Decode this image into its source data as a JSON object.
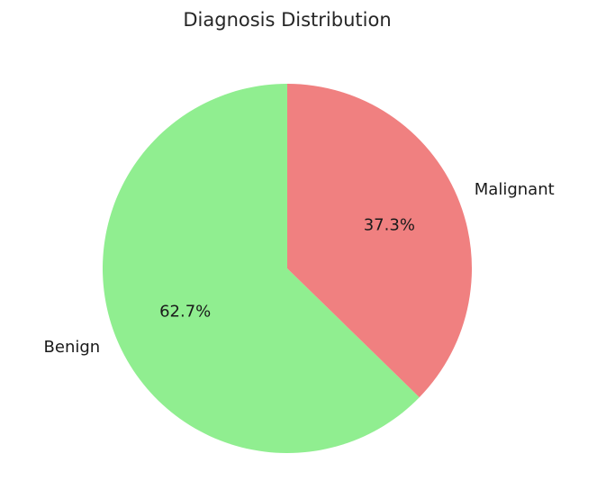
{
  "chart_data": {
    "type": "pie",
    "title": "Diagnosis Distribution",
    "categories": [
      "Benign",
      "Malignant"
    ],
    "values": [
      62.7,
      37.3
    ],
    "value_labels": [
      "62.7%",
      "37.3%"
    ],
    "colors": [
      "#90ee90",
      "#f08080"
    ],
    "start_angle_deg": 90,
    "direction": "counterclockwise",
    "legend": "none"
  }
}
